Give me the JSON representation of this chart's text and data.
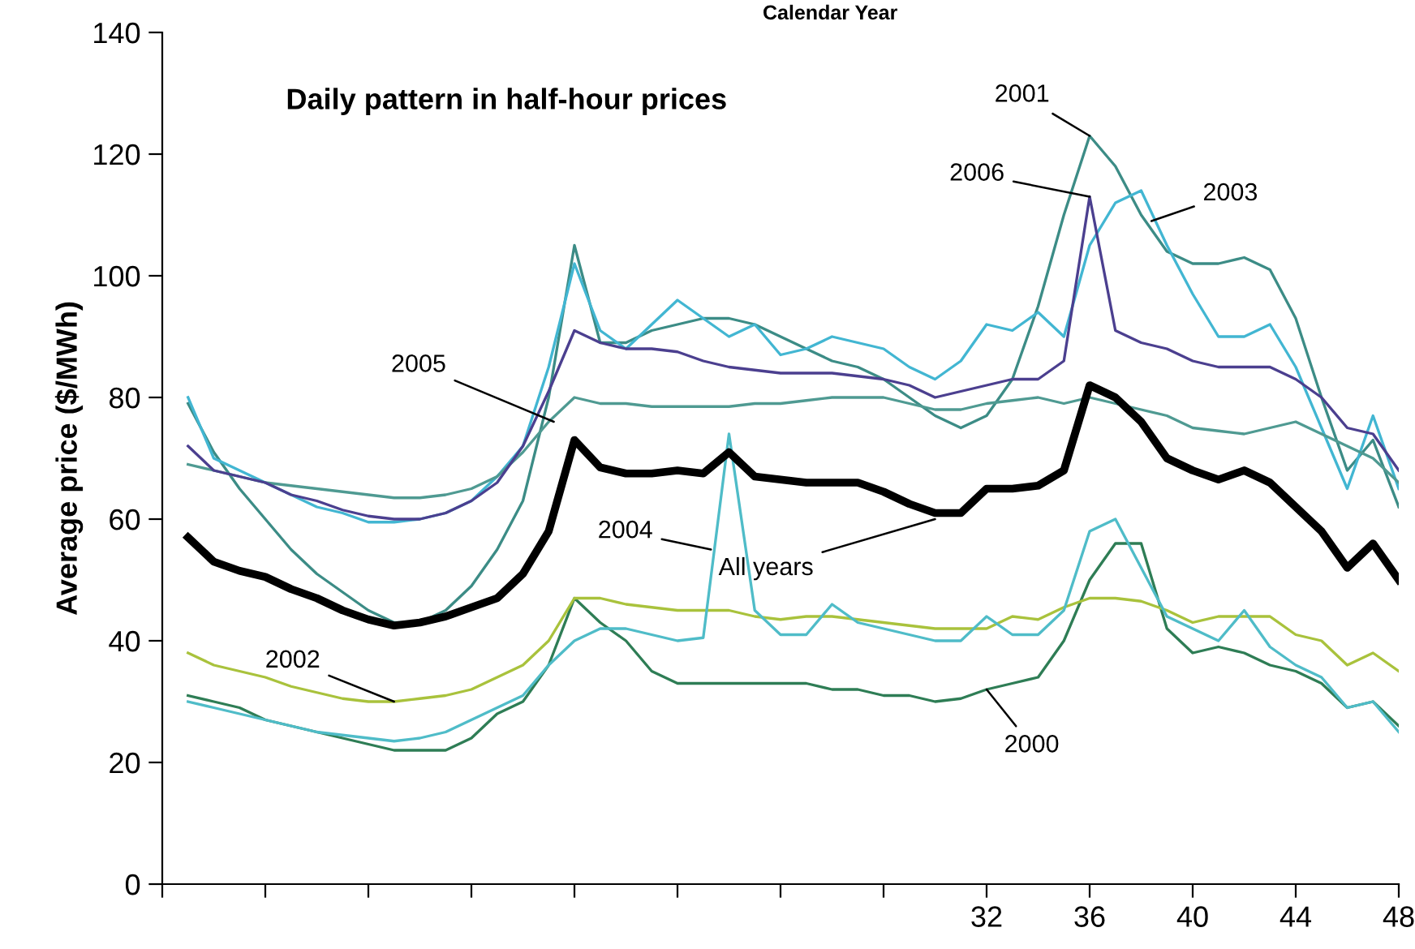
{
  "chart_data": {
    "type": "line",
    "title": "Daily pattern in half-hour prices",
    "ylabel": "Average price ($/MWh)",
    "x": [
      1,
      2,
      3,
      4,
      5,
      6,
      7,
      8,
      9,
      10,
      11,
      12,
      13,
      14,
      15,
      16,
      17,
      18,
      19,
      20,
      21,
      22,
      23,
      24,
      25,
      26,
      27,
      28,
      29,
      30,
      31,
      32,
      33,
      34,
      35,
      36,
      37,
      38,
      39,
      40,
      41,
      42,
      43,
      44,
      45,
      46,
      47,
      48
    ],
    "series": [
      {
        "color": "#2e7d55",
        "values": [
          31,
          30,
          29,
          27,
          26,
          25,
          24,
          23,
          22,
          22,
          22,
          24,
          28,
          30,
          36,
          47,
          43,
          40,
          35,
          33,
          33,
          33,
          33,
          33,
          33,
          32,
          32,
          31,
          31,
          30,
          30.5,
          32,
          33,
          34,
          40,
          50,
          56,
          56,
          42,
          38,
          39,
          38,
          36,
          35,
          33,
          29,
          30,
          26
        ]
      },
      {
        "color": "#3c8c86",
        "values": [
          79,
          71,
          65,
          60,
          55,
          51,
          48,
          45,
          43,
          43,
          45,
          49,
          55,
          63,
          80,
          105,
          89,
          89,
          91,
          92,
          93,
          93,
          92,
          90,
          88,
          86,
          85,
          83,
          80,
          77,
          75,
          77,
          83,
          95,
          110,
          123,
          118,
          110,
          104,
          102,
          102,
          103,
          101,
          93,
          80,
          68,
          73,
          62
        ]
      },
      {
        "color": "#a9c23c",
        "values": [
          38,
          36,
          35,
          34,
          32.5,
          31.5,
          30.5,
          30,
          30,
          30.5,
          31,
          32,
          34,
          36,
          40,
          47,
          47,
          46,
          45.5,
          45,
          45,
          45,
          44,
          43.5,
          44,
          44,
          43.5,
          43,
          42.5,
          42,
          42,
          42,
          44,
          43.5,
          45.5,
          47,
          47,
          46.5,
          45,
          43,
          44,
          44,
          44,
          41,
          40,
          36,
          38,
          35
        ]
      },
      {
        "color": "#42b6d2",
        "values": [
          80,
          70,
          68,
          66,
          64,
          62,
          61,
          59.5,
          59.5,
          60,
          61,
          63,
          67,
          72,
          85,
          102,
          91,
          88,
          92,
          96,
          93,
          90,
          92,
          87,
          88,
          90,
          89,
          88,
          85,
          83,
          86,
          92,
          91,
          94,
          90,
          105,
          112,
          114,
          105,
          97,
          90,
          90,
          92,
          85,
          75,
          65,
          77,
          65
        ]
      },
      {
        "color": "#4fbcc8",
        "values": [
          30,
          29,
          28,
          27,
          26,
          25,
          24.5,
          24,
          23.5,
          24,
          25,
          27,
          29,
          31,
          36,
          40,
          42,
          42,
          41,
          40,
          40.5,
          74,
          45,
          41,
          41,
          46,
          43,
          42,
          41,
          40,
          40,
          44,
          41,
          41,
          45,
          58,
          60,
          52,
          44,
          42,
          40,
          45,
          39,
          36,
          34,
          29,
          30,
          25
        ]
      },
      {
        "color": "#4f9a92",
        "values": [
          69,
          68,
          67,
          66,
          65.5,
          65,
          64.5,
          64,
          63.5,
          63.5,
          64,
          65,
          67,
          71,
          76,
          80,
          79,
          79,
          78.5,
          78.5,
          78.5,
          78.5,
          79,
          79,
          79.5,
          80,
          80,
          80,
          79,
          78,
          78,
          79,
          79.5,
          80,
          79,
          80,
          79,
          78,
          77,
          75,
          74.5,
          74,
          75,
          76,
          74,
          72,
          70,
          66
        ]
      },
      {
        "color": "#4b3f8f",
        "values": [
          72,
          68,
          67,
          66,
          64,
          63,
          61.5,
          60.5,
          60,
          60,
          61,
          63,
          66,
          72,
          81,
          91,
          89,
          88,
          88,
          87.5,
          86,
          85,
          84.5,
          84,
          84,
          84,
          83.5,
          83,
          82,
          80,
          81,
          82,
          83,
          83,
          86,
          113,
          91,
          89,
          88,
          86,
          85,
          85,
          85,
          83,
          80,
          75,
          74,
          68
        ]
      },
      {
        "color": "#000000",
        "values": [
          57,
          53,
          51.5,
          50.5,
          48.5,
          47,
          45,
          43.5,
          42.5,
          43,
          44,
          45.5,
          47,
          51,
          58,
          73,
          68.5,
          67.5,
          67.5,
          68,
          67.5,
          71,
          67,
          66.5,
          66,
          66,
          66,
          64.5,
          62.5,
          61,
          61,
          65,
          65,
          65.5,
          68,
          82,
          80,
          76,
          70,
          68,
          66.5,
          68,
          66,
          62,
          58,
          52,
          56,
          50
        ]
      }
    ],
    "xlim": [
      0,
      48
    ],
    "xticks": [
      {
        "value": 0,
        "label": null
      },
      {
        "value": 4,
        "label": null
      },
      {
        "value": 8,
        "label": null
      },
      {
        "value": 12,
        "label": null
      },
      {
        "value": 16,
        "label": null
      },
      {
        "value": 20,
        "label": null
      },
      {
        "value": 24,
        "label": null
      },
      {
        "value": 28,
        "label": null
      },
      32,
      36,
      40,
      44,
      48
    ],
    "ylim": [
      0,
      140
    ],
    "yticks": [
      0,
      20,
      40,
      60,
      80,
      100,
      120,
      140
    ],
    "grid": false,
    "legend": false,
    "marker": "none",
    "line_style": "solid",
    "annotations": [
      "Calendar Year",
      {
        "text": "2001",
        "x": 36,
        "y": 123
      },
      {
        "text": "2006",
        "x": 36,
        "y": 113
      },
      {
        "text": "2003",
        "x": 38.4,
        "y": 109
      },
      {
        "text": "2005",
        "x": 15.2,
        "y": 76
      },
      {
        "text": "2004",
        "x": 21.3,
        "y": 55
      },
      {
        "text": "All years",
        "x": 30,
        "y": 60
      },
      {
        "text": "2002",
        "x": 9,
        "y": 30
      },
      {
        "text": "2000",
        "x": 32,
        "y": 32
      }
    ]
  }
}
